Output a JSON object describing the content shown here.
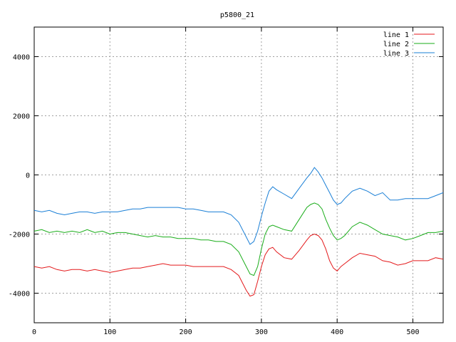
{
  "chart_data": {
    "type": "line",
    "title": "p5800_21",
    "xlabel": "",
    "ylabel": "",
    "xlim": [
      0,
      540
    ],
    "ylim": [
      -5000,
      5000
    ],
    "x_ticks": [
      0,
      100,
      200,
      300,
      400,
      500
    ],
    "y_ticks": [
      -4000,
      -2000,
      0,
      2000,
      4000
    ],
    "grid": true,
    "legend_position": "top-right",
    "x": [
      0,
      10,
      20,
      30,
      40,
      50,
      60,
      70,
      80,
      90,
      100,
      110,
      120,
      130,
      140,
      150,
      160,
      170,
      180,
      190,
      200,
      210,
      220,
      230,
      240,
      250,
      260,
      270,
      280,
      285,
      290,
      295,
      300,
      305,
      310,
      315,
      320,
      330,
      340,
      350,
      360,
      365,
      370,
      375,
      380,
      385,
      390,
      395,
      400,
      405,
      410,
      420,
      430,
      440,
      450,
      460,
      470,
      480,
      490,
      500,
      510,
      520,
      530,
      540
    ],
    "series": [
      {
        "name": "line 1",
        "color": "#e41a1c",
        "values": [
          -3100,
          -3150,
          -3100,
          -3200,
          -3250,
          -3200,
          -3200,
          -3250,
          -3200,
          -3250,
          -3300,
          -3250,
          -3200,
          -3150,
          -3150,
          -3100,
          -3050,
          -3000,
          -3050,
          -3050,
          -3050,
          -3100,
          -3100,
          -3100,
          -3100,
          -3100,
          -3200,
          -3400,
          -3900,
          -4100,
          -4050,
          -3600,
          -3100,
          -2700,
          -2500,
          -2450,
          -2600,
          -2800,
          -2850,
          -2550,
          -2200,
          -2050,
          -2000,
          -2050,
          -2200,
          -2500,
          -2900,
          -3150,
          -3250,
          -3100,
          -3000,
          -2800,
          -2650,
          -2700,
          -2750,
          -2900,
          -2950,
          -3050,
          -3000,
          -2900,
          -2900,
          -2900,
          -2800,
          -2850
        ]
      },
      {
        "name": "line 2",
        "color": "#1aad1a",
        "values": [
          -1900,
          -1850,
          -1950,
          -1900,
          -1950,
          -1900,
          -1950,
          -1850,
          -1950,
          -1900,
          -2000,
          -1950,
          -1950,
          -2000,
          -2050,
          -2100,
          -2050,
          -2100,
          -2100,
          -2150,
          -2150,
          -2150,
          -2200,
          -2200,
          -2250,
          -2250,
          -2350,
          -2600,
          -3100,
          -3350,
          -3400,
          -3100,
          -2500,
          -2000,
          -1750,
          -1700,
          -1750,
          -1850,
          -1900,
          -1500,
          -1100,
          -1000,
          -950,
          -1000,
          -1150,
          -1500,
          -1800,
          -2050,
          -2200,
          -2150,
          -2050,
          -1750,
          -1600,
          -1700,
          -1850,
          -2000,
          -2050,
          -2100,
          -2200,
          -2150,
          -2050,
          -1950,
          -1950,
          -1900
        ]
      },
      {
        "name": "line 3",
        "color": "#1a7fd6",
        "values": [
          -1200,
          -1250,
          -1200,
          -1300,
          -1350,
          -1300,
          -1250,
          -1250,
          -1300,
          -1250,
          -1250,
          -1250,
          -1200,
          -1150,
          -1150,
          -1100,
          -1100,
          -1100,
          -1100,
          -1100,
          -1150,
          -1150,
          -1200,
          -1250,
          -1250,
          -1250,
          -1350,
          -1600,
          -2100,
          -2350,
          -2250,
          -1900,
          -1400,
          -950,
          -550,
          -400,
          -500,
          -650,
          -800,
          -450,
          -100,
          50,
          250,
          100,
          -100,
          -350,
          -600,
          -850,
          -1000,
          -950,
          -800,
          -550,
          -450,
          -550,
          -700,
          -600,
          -850,
          -850,
          -800,
          -800,
          -800,
          -800,
          -700,
          -600
        ]
      }
    ]
  }
}
